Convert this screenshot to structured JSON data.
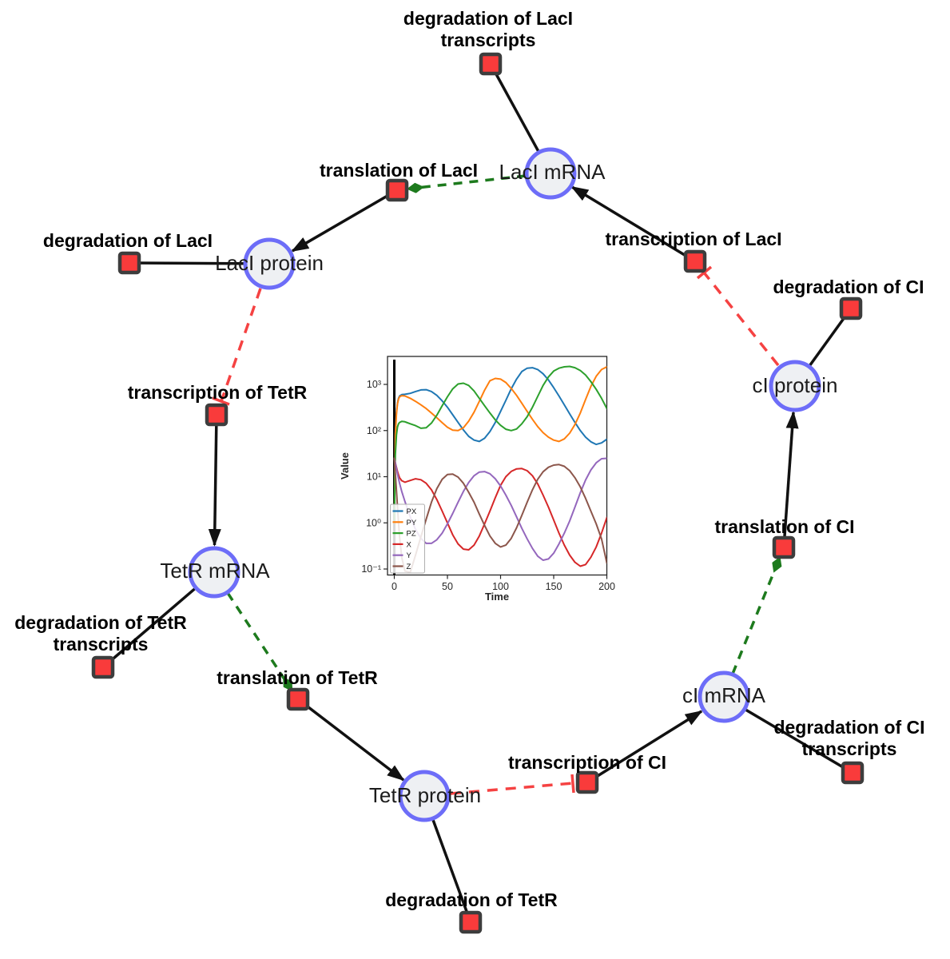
{
  "diagram": {
    "species": [
      {
        "id": "laci-mrna",
        "label": "LacI mRNA"
      },
      {
        "id": "laci-protein",
        "label": "LacI protein"
      },
      {
        "id": "tetr-mrna",
        "label": "TetR mRNA"
      },
      {
        "id": "tetr-protein",
        "label": "TetR protein"
      },
      {
        "id": "ci-mrna",
        "label": "cI mRNA"
      },
      {
        "id": "ci-protein",
        "label": "cI protein"
      }
    ],
    "reactions": [
      {
        "id": "degradation-laci-transcripts",
        "lines": [
          "degradation of LacI",
          "transcripts"
        ]
      },
      {
        "id": "translation-laci",
        "lines": [
          "translation of LacI"
        ]
      },
      {
        "id": "transcription-laci",
        "lines": [
          "transcription of LacI"
        ]
      },
      {
        "id": "degradation-laci",
        "lines": [
          "degradation of LacI"
        ]
      },
      {
        "id": "transcription-tetr",
        "lines": [
          "transcription of TetR"
        ]
      },
      {
        "id": "degradation-tetr-transcripts",
        "lines": [
          "degradation of TetR",
          "transcripts"
        ]
      },
      {
        "id": "translation-tetr",
        "lines": [
          "translation of TetR"
        ]
      },
      {
        "id": "degradation-tetr",
        "lines": [
          "degradation of TetR"
        ]
      },
      {
        "id": "transcription-ci",
        "lines": [
          "transcription of CI"
        ]
      },
      {
        "id": "degradation-ci-transcripts",
        "lines": [
          "degradation of CI",
          "transcripts"
        ]
      },
      {
        "id": "translation-ci",
        "lines": [
          "translation of CI"
        ]
      },
      {
        "id": "degradation-ci",
        "lines": [
          "degradation of CI"
        ]
      }
    ],
    "colors": {
      "species_fill": "#eef0f3",
      "species_stroke": "#6d6df8",
      "reaction_fill": "#f93b3b",
      "reaction_stroke": "#3d3d3d",
      "edge_black": "#111111",
      "edge_activation_green": "#1d7a1d",
      "edge_inhibition_red": "#f54242"
    }
  },
  "chart_data": {
    "type": "line",
    "title": "",
    "xlabel": "Time",
    "ylabel": "Value",
    "y_scale": "log",
    "xlim": [
      -6,
      202
    ],
    "ylim_log10": [
      -1.13,
      3.6
    ],
    "x_ticks": [
      0,
      50,
      100,
      150,
      200
    ],
    "y_ticks": [
      {
        "exp": 3,
        "label": "10³"
      },
      {
        "exp": 2,
        "label": "10²"
      },
      {
        "exp": 1,
        "label": "10¹"
      },
      {
        "exp": 0,
        "label": "10⁰"
      },
      {
        "exp": -1,
        "label": "10⁻¹"
      }
    ],
    "legend_position": "lower left",
    "vline_x": 0,
    "x": [
      0,
      1,
      2,
      3,
      4,
      5,
      7,
      10,
      15,
      20,
      25,
      30,
      35,
      40,
      45,
      50,
      55,
      60,
      65,
      70,
      75,
      80,
      85,
      90,
      95,
      100,
      105,
      110,
      115,
      120,
      125,
      130,
      135,
      140,
      145,
      150,
      155,
      160,
      165,
      170,
      175,
      180,
      185,
      190,
      195,
      200
    ],
    "series": [
      {
        "name": "PX",
        "color": "#1f77b4",
        "values": [
          1,
          90,
          250,
          400,
          500,
          560,
          600,
          610,
          640,
          700,
          760,
          770,
          700,
          580,
          440,
          320,
          220,
          150,
          103,
          75,
          62,
          58,
          68,
          95,
          150,
          260,
          450,
          800,
          1300,
          1900,
          2250,
          2300,
          2100,
          1700,
          1250,
          850,
          560,
          360,
          230,
          150,
          100,
          72,
          57,
          50,
          54,
          65
        ]
      },
      {
        "name": "PY",
        "color": "#ff7f0e",
        "values": [
          1,
          80,
          230,
          380,
          480,
          540,
          570,
          560,
          500,
          430,
          360,
          300,
          240,
          190,
          148,
          118,
          102,
          100,
          115,
          160,
          250,
          430,
          750,
          1200,
          1350,
          1300,
          1100,
          820,
          580,
          390,
          260,
          175,
          122,
          90,
          72,
          62,
          58,
          66,
          88,
          135,
          240,
          470,
          900,
          1500,
          2100,
          2400
        ]
      },
      {
        "name": "PZ",
        "color": "#2ca02c",
        "values": [
          1,
          30,
          80,
          120,
          140,
          150,
          158,
          155,
          140,
          128,
          112,
          115,
          145,
          215,
          345,
          540,
          800,
          1020,
          1060,
          950,
          720,
          500,
          345,
          240,
          170,
          130,
          107,
          100,
          108,
          140,
          200,
          320,
          550,
          950,
          1450,
          1950,
          2250,
          2400,
          2450,
          2300,
          2000,
          1600,
          1150,
          780,
          500,
          300
        ]
      },
      {
        "name": "X",
        "color": "#d62728",
        "values": [
          25,
          20,
          16,
          13,
          11,
          9.5,
          8.2,
          7.6,
          8.3,
          9.0,
          8.6,
          7.2,
          5.2,
          3.2,
          1.8,
          1.0,
          0.55,
          0.35,
          0.27,
          0.26,
          0.33,
          0.52,
          0.95,
          1.8,
          3.5,
          6.5,
          10,
          13,
          14.8,
          15,
          13.5,
          10.5,
          7,
          4,
          2.2,
          1.15,
          0.6,
          0.33,
          0.2,
          0.14,
          0.115,
          0.125,
          0.18,
          0.3,
          0.6,
          1.3
        ]
      },
      {
        "name": "Y",
        "color": "#9467bd",
        "values": [
          25,
          20,
          15,
          11.5,
          9,
          7.2,
          4.8,
          2.9,
          1.35,
          0.72,
          0.46,
          0.36,
          0.36,
          0.43,
          0.6,
          0.95,
          1.6,
          2.8,
          4.8,
          7.5,
          10.5,
          12.6,
          12.9,
          11.6,
          9,
          6.3,
          4,
          2.4,
          1.35,
          0.76,
          0.45,
          0.28,
          0.19,
          0.155,
          0.165,
          0.22,
          0.35,
          0.6,
          1.1,
          2.2,
          4.5,
          8.5,
          14,
          20,
          24.5,
          25
        ]
      },
      {
        "name": "Z",
        "color": "#8c564b",
        "values": [
          25,
          12,
          5,
          2.2,
          1.0,
          0.5,
          0.18,
          0.09,
          0.085,
          0.2,
          0.5,
          1.2,
          2.8,
          5.5,
          8.8,
          11.2,
          11.4,
          9.8,
          7.2,
          4.6,
          2.8,
          1.55,
          0.88,
          0.52,
          0.36,
          0.3,
          0.33,
          0.46,
          0.78,
          1.45,
          2.8,
          5.2,
          8.8,
          12.8,
          16,
          17.8,
          18.3,
          16.8,
          13.5,
          9.5,
          6,
          3.4,
          1.8,
          0.95,
          0.45,
          0.135
        ]
      }
    ]
  }
}
